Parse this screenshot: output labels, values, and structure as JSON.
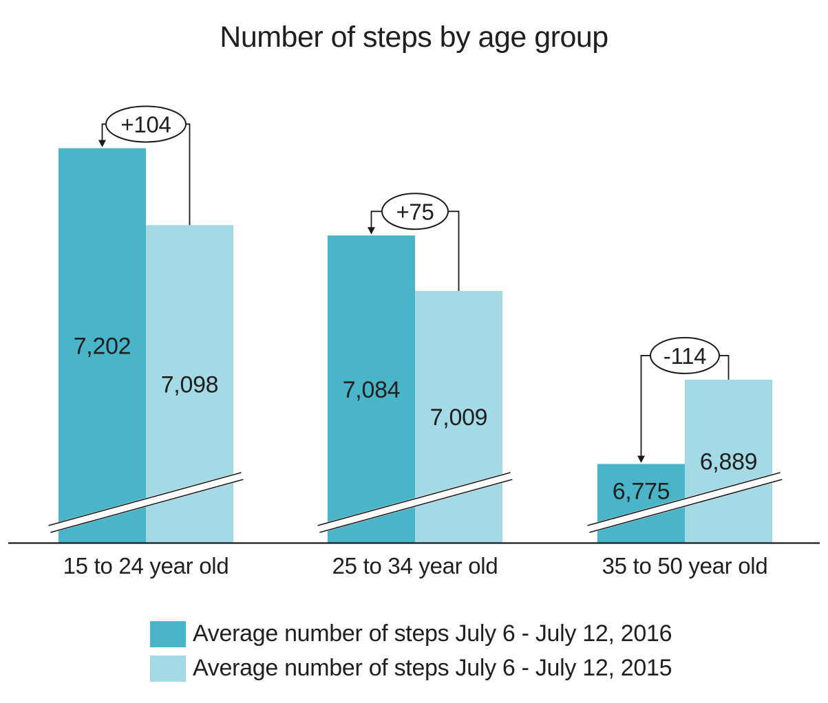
{
  "title": "Number of steps by age group",
  "colors": {
    "bar_2016": "#4AB4C8",
    "bar_2015": "#A3DAE5",
    "text": "#1F1F1F",
    "line": "#1A1A1A"
  },
  "chart_data": {
    "type": "bar",
    "title": "Number of steps by age group",
    "categories": [
      "15 to 24 year old",
      "25 to 34 year old",
      "35 to 50 year old"
    ],
    "series": [
      {
        "name": "Average number of steps July 6 - July 12, 2016",
        "color": "#4AB4C8",
        "values": [
          7202,
          7084,
          6775
        ],
        "value_labels": [
          "7,202",
          "7,084",
          "6,775"
        ]
      },
      {
        "name": "Average number of steps July 6 - July 12, 2015",
        "color": "#A3DAE5",
        "values": [
          7098,
          7009,
          6889
        ],
        "value_labels": [
          "7,098",
          "7,009",
          "6,889"
        ]
      }
    ],
    "diff_annotations": [
      "+104",
      "+75",
      "-114"
    ],
    "axis_break": true,
    "y_axis_visible": false,
    "baseline_value_at_break": 6668,
    "legend_position": "bottom"
  }
}
